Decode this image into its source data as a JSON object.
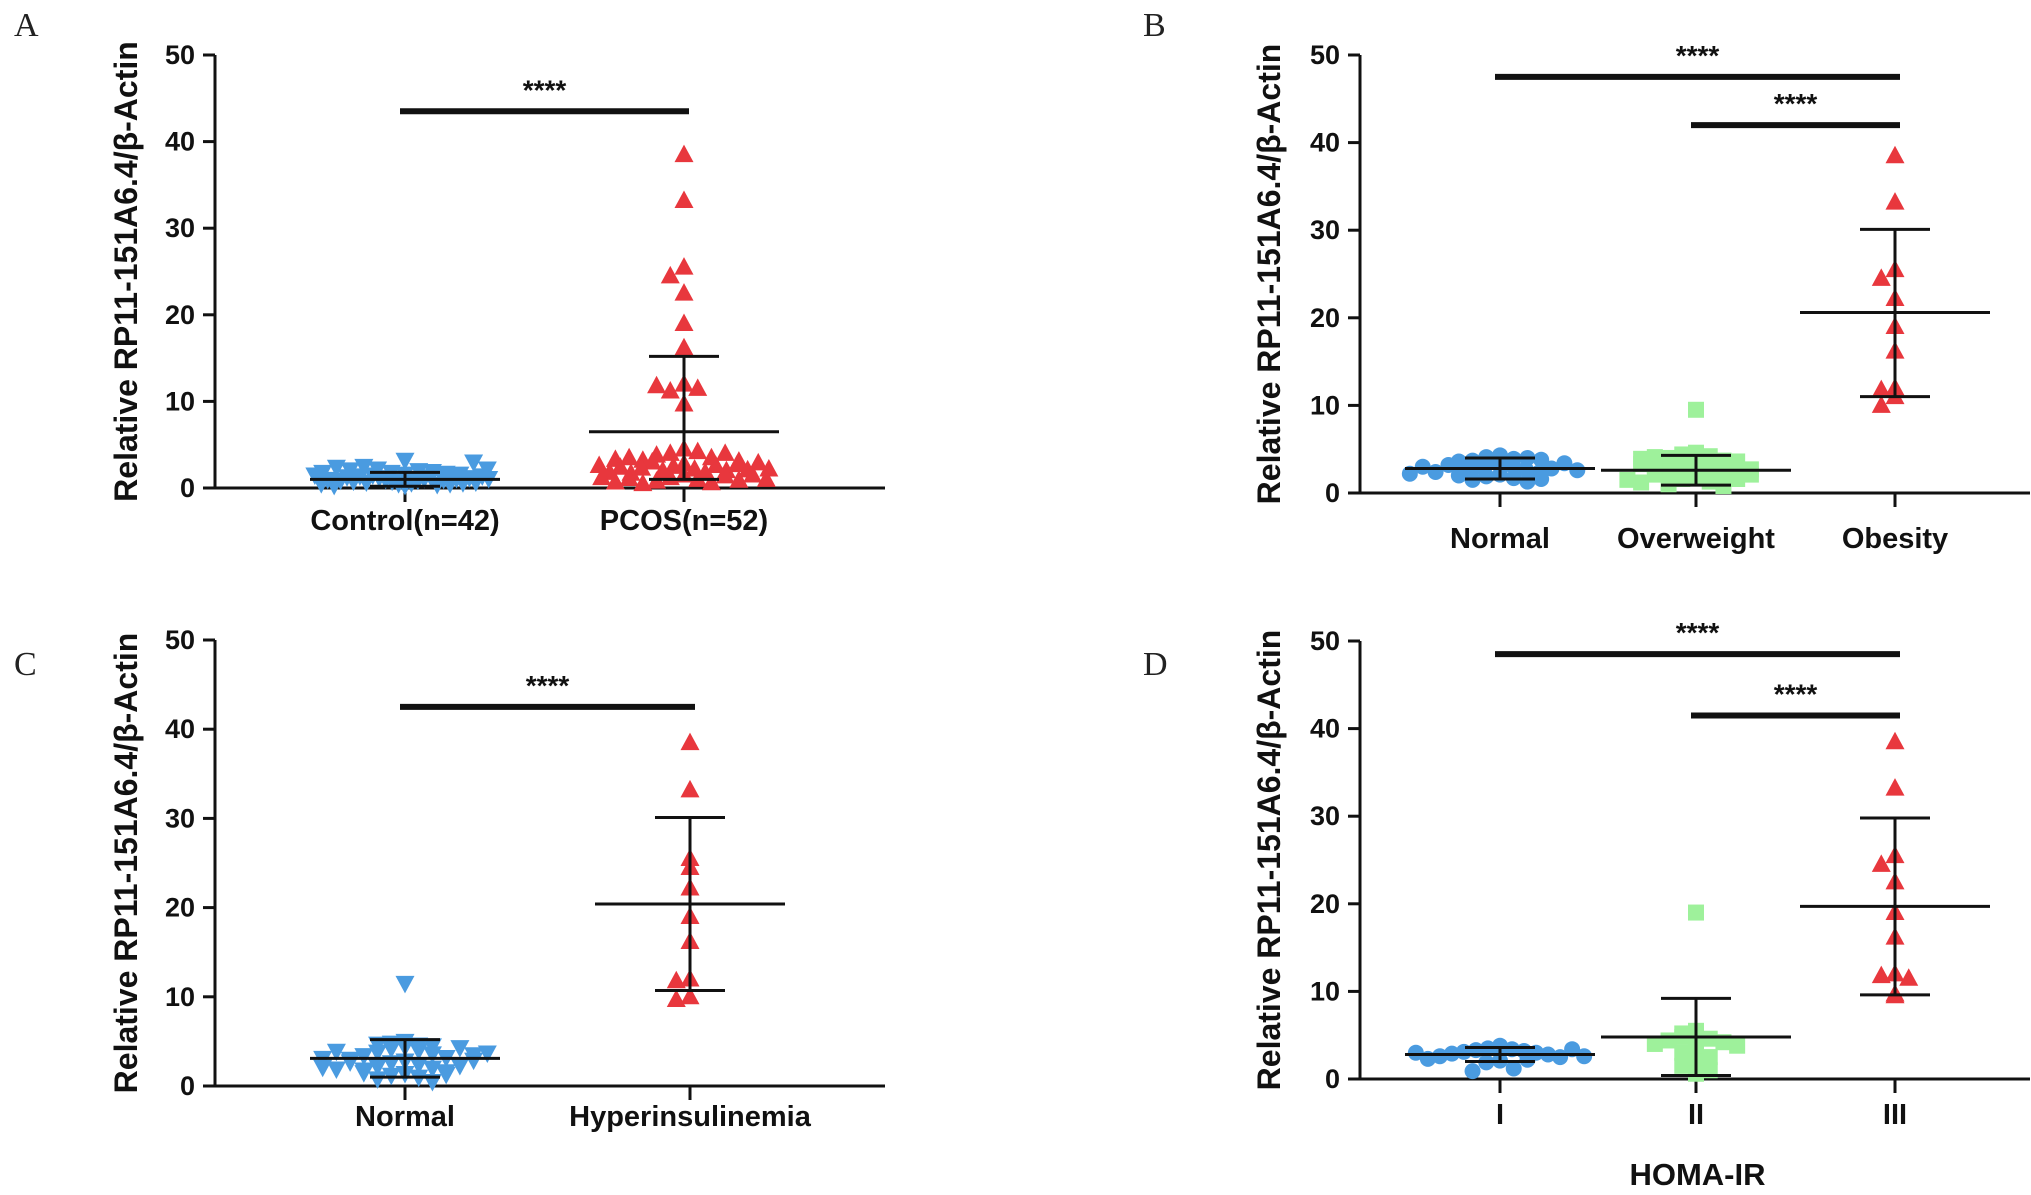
{
  "chart_data": [
    {
      "panel": "A",
      "type": "scatter",
      "ylabel": "Relative RP11-151A6.4/β-Actin",
      "ylim": [
        0,
        50
      ],
      "yticks": [
        0,
        10,
        20,
        30,
        40,
        50
      ],
      "xlabel": "",
      "categories": [
        "Control(n=42)",
        "PCOS(n=52)"
      ],
      "groups": [
        {
          "name": "Control(n=42)",
          "marker": "triangle-down",
          "color": "#4a9be0",
          "mean": 1.0,
          "sd_upper": 1.8,
          "sd_lower": 0.2,
          "points": [
            0.3,
            0.5,
            0.6,
            0.8,
            0.9,
            1.0,
            1.1,
            1.2,
            1.3,
            1.5,
            1.6,
            1.8,
            2.0,
            2.2,
            0.4,
            0.7,
            1.0,
            1.4,
            1.9,
            2.5,
            3.2,
            0.5,
            0.8,
            1.1,
            1.3,
            1.7,
            2.1,
            0.6,
            0.9,
            1.2,
            1.6,
            2.4,
            3.0,
            0.3,
            0.7,
            1.0,
            1.4,
            1.8,
            2.2,
            0.5,
            1.1,
            1.5
          ]
        },
        {
          "name": "PCOS(n=52)",
          "marker": "triangle-up",
          "color": "#e8373d",
          "mean": 6.5,
          "sd_upper": 15.2,
          "sd_lower": 1.0,
          "points": [
            38.5,
            33.2,
            25.5,
            24.5,
            22.5,
            19.0,
            16.2,
            12.0,
            11.2,
            9.7,
            11.5,
            11.8,
            4.5,
            4.0,
            4.2,
            3.8,
            3.5,
            3.2,
            2.8,
            2.5,
            2.2,
            2.0,
            1.8,
            1.5,
            1.2,
            1.0,
            0.8,
            0.6,
            0.5,
            3.0,
            2.6,
            2.3,
            2.0,
            1.7,
            1.4,
            1.1,
            0.9,
            0.7,
            4.0,
            3.5,
            3.1,
            2.7,
            2.4,
            2.1,
            1.8,
            1.5,
            1.2,
            1.0,
            3.3,
            2.9,
            2.6,
            2.2
          ]
        }
      ],
      "comparisons": [
        {
          "from": "Control(n=42)",
          "to": "PCOS(n=52)",
          "y": 43.5,
          "label": "****"
        }
      ]
    },
    {
      "panel": "B",
      "type": "scatter",
      "ylabel": "Relative RP11-151A6.4/β-Actin",
      "ylim": [
        0,
        50
      ],
      "yticks": [
        0,
        10,
        20,
        30,
        40,
        50
      ],
      "xlabel": "",
      "categories": [
        "Normal",
        "Overweight",
        "Obesity"
      ],
      "groups": [
        {
          "name": "Normal",
          "marker": "circle",
          "color": "#4a9be0",
          "mean": 2.8,
          "sd_upper": 4.0,
          "sd_lower": 1.6,
          "points": [
            4.3,
            4.1,
            3.9,
            3.7,
            3.5,
            3.3,
            3.1,
            2.9,
            2.7,
            2.5,
            2.3,
            2.1,
            1.9,
            1.7,
            1.5,
            1.3,
            4.0,
            3.6,
            3.2,
            2.8,
            2.4,
            2.0,
            1.6,
            3.8,
            3.4,
            3.0,
            2.6,
            2.2
          ]
        },
        {
          "name": "Overweight",
          "marker": "square",
          "color": "#9ef19b",
          "mean": 2.6,
          "sd_upper": 4.3,
          "sd_lower": 0.9,
          "points": [
            9.5,
            4.6,
            4.4,
            4.2,
            4.0,
            3.7,
            3.4,
            3.1,
            2.8,
            2.5,
            2.2,
            1.9,
            1.6,
            1.3,
            1.0,
            0.8,
            4.1,
            3.6,
            3.1,
            2.6,
            2.1,
            1.6,
            1.2,
            3.9,
            3.3,
            2.7,
            2.1,
            1.5
          ]
        },
        {
          "name": "Obesity",
          "marker": "triangle-up",
          "color": "#e8373d",
          "mean": 20.6,
          "sd_upper": 30.1,
          "sd_lower": 11.0,
          "points": [
            38.5,
            33.2,
            25.5,
            24.5,
            22.2,
            19.0,
            16.2,
            12.0,
            11.8,
            11.0,
            10.0
          ]
        }
      ],
      "comparisons": [
        {
          "from": "Normal",
          "to": "Obesity",
          "y": 47.5,
          "label": "****"
        },
        {
          "from": "Overweight",
          "to": "Obesity",
          "y": 42.0,
          "label": "****"
        }
      ]
    },
    {
      "panel": "C",
      "type": "scatter",
      "ylabel": "Relative RP11-151A6.4/β-Actin",
      "ylim": [
        0,
        50
      ],
      "yticks": [
        0,
        10,
        20,
        30,
        40,
        50
      ],
      "xlabel": "",
      "categories": [
        "Normal",
        "Hyperinsulinemia"
      ],
      "groups": [
        {
          "name": "Normal",
          "marker": "triangle-down",
          "color": "#4a9be0",
          "mean": 3.1,
          "sd_upper": 5.2,
          "sd_lower": 1.0,
          "points": [
            11.5,
            5.0,
            4.8,
            4.6,
            4.4,
            4.2,
            4.0,
            3.8,
            3.6,
            3.4,
            3.2,
            3.0,
            2.8,
            2.6,
            2.4,
            2.2,
            2.0,
            1.8,
            1.6,
            1.4,
            1.2,
            1.0,
            0.8,
            0.5,
            4.7,
            4.3,
            3.9,
            3.5,
            3.1,
            2.7,
            2.3,
            1.9,
            1.5,
            4.5,
            3.7,
            2.9,
            2.1,
            1.3
          ]
        },
        {
          "name": "Hyperinsulinemia",
          "marker": "triangle-up",
          "color": "#e8373d",
          "mean": 20.4,
          "sd_upper": 30.1,
          "sd_lower": 10.7,
          "points": [
            38.5,
            33.2,
            25.5,
            24.5,
            22.2,
            19.0,
            16.2,
            12.0,
            11.8,
            10.0,
            9.7
          ]
        }
      ],
      "comparisons": [
        {
          "from": "Normal",
          "to": "Hyperinsulinemia",
          "y": 42.5,
          "label": "****"
        }
      ]
    },
    {
      "panel": "D",
      "type": "scatter",
      "ylabel": "Relative RP11-151A6.4/β-Actin",
      "ylim": [
        0,
        50
      ],
      "yticks": [
        0,
        10,
        20,
        30,
        40,
        50
      ],
      "xlabel": "HOMA-IR",
      "categories": [
        "I",
        "II",
        "III"
      ],
      "groups": [
        {
          "name": "I",
          "marker": "circle",
          "color": "#4a9be0",
          "mean": 2.8,
          "sd_upper": 3.6,
          "sd_lower": 2.0,
          "points": [
            3.8,
            3.6,
            3.5,
            3.4,
            3.3,
            3.2,
            3.1,
            3.0,
            2.9,
            2.8,
            2.6,
            2.5,
            2.3,
            2.1,
            1.9,
            1.2,
            0.9,
            3.4,
            3.0,
            2.6,
            2.2
          ]
        },
        {
          "name": "II",
          "marker": "square",
          "color": "#9ef19b",
          "mean": 4.8,
          "sd_upper": 9.2,
          "sd_lower": 0.4,
          "points": [
            19.0,
            5.5,
            5.2,
            5.0,
            4.8,
            4.6,
            4.4,
            4.2,
            4.0,
            3.8,
            3.5,
            3.0,
            2.5,
            2.0,
            1.5,
            1.0,
            0.6
          ]
        },
        {
          "name": "III",
          "marker": "triangle-up",
          "color": "#e8373d",
          "mean": 19.7,
          "sd_upper": 29.8,
          "sd_lower": 9.6,
          "points": [
            38.5,
            33.2,
            25.5,
            24.5,
            22.5,
            19.0,
            16.2,
            12.0,
            11.8,
            11.5,
            9.7,
            9.5
          ]
        }
      ],
      "comparisons": [
        {
          "from": "I",
          "to": "III",
          "y": 48.5,
          "label": "****"
        },
        {
          "from": "II",
          "to": "III",
          "y": 41.5,
          "label": "****"
        }
      ]
    }
  ]
}
